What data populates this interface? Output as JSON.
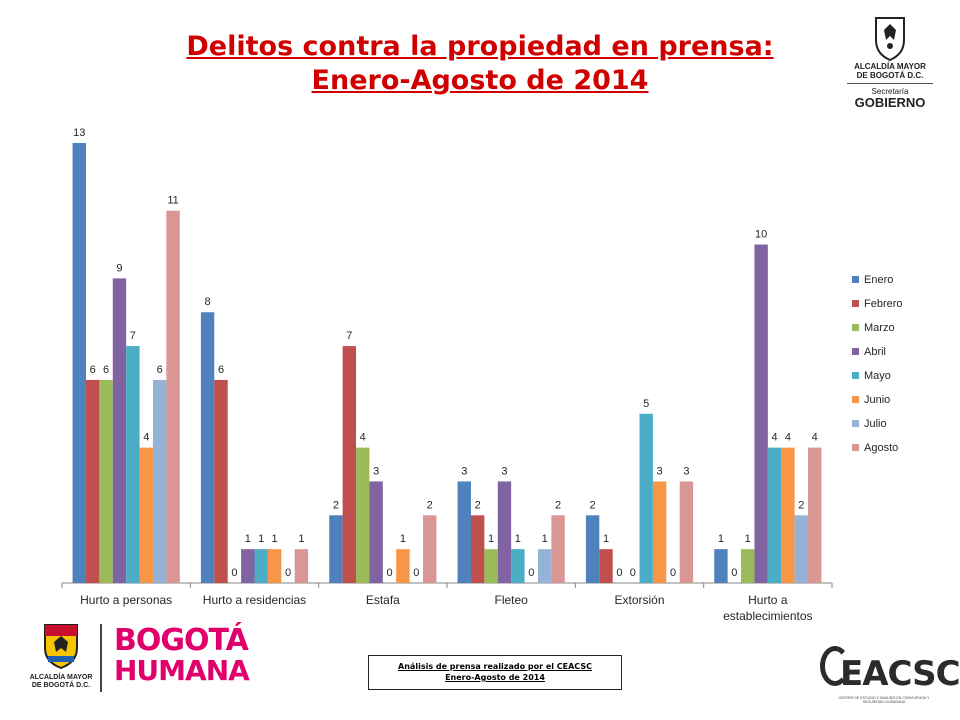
{
  "title_line1": "Delitos contra la propiedad en prensa:",
  "title_line2": "Enero-Agosto de 2014",
  "logo_top": {
    "line1": "ALCALDÍA MAYOR",
    "line2": "DE BOGOTÁ D.C.",
    "line3": "Secretaría",
    "line4": "GOBIERNO",
    "icon": "shield-icon"
  },
  "chart_data": {
    "type": "bar",
    "categories": [
      "Hurto a personas",
      "Hurto a residencias",
      "Estafa",
      "Fleteo",
      "Extorsión",
      "Hurto a establecimientos"
    ],
    "category_label_lines": [
      [
        "Hurto a personas"
      ],
      [
        "Hurto a residencias"
      ],
      [
        "Estafa"
      ],
      [
        "Fleteo"
      ],
      [
        "Extorsión"
      ],
      [
        "Hurto a",
        "establecimientos"
      ]
    ],
    "series": [
      {
        "name": "Enero",
        "color": "#4f81bd",
        "values": [
          13,
          8,
          2,
          3,
          2,
          1
        ]
      },
      {
        "name": "Febrero",
        "color": "#c0504d",
        "values": [
          6,
          6,
          7,
          2,
          1,
          0
        ]
      },
      {
        "name": "Marzo",
        "color": "#9bbb59",
        "values": [
          6,
          0,
          4,
          1,
          0,
          1
        ]
      },
      {
        "name": "Abril",
        "color": "#8064a2",
        "values": [
          9,
          1,
          3,
          3,
          0,
          10
        ]
      },
      {
        "name": "Mayo",
        "color": "#4bacc6",
        "values": [
          7,
          1,
          0,
          1,
          5,
          4
        ]
      },
      {
        "name": "Junio",
        "color": "#f79646",
        "values": [
          4,
          1,
          1,
          0,
          3,
          4
        ]
      },
      {
        "name": "Julio",
        "color": "#95b3d7",
        "values": [
          6,
          0,
          0,
          1,
          0,
          2
        ]
      },
      {
        "name": "Agosto",
        "color": "#d99694",
        "values": [
          11,
          1,
          2,
          2,
          3,
          4
        ]
      }
    ],
    "ylim": [
      0,
      13
    ],
    "data_labels": true,
    "grid": false,
    "legend": "right"
  },
  "bottom_left": {
    "shield_icon": "shield-icon",
    "alcaldia_line1": "ALCALDÍA MAYOR",
    "alcaldia_line2": "DE BOGOTÁ D.C.",
    "bogota": "BOGOTÁ",
    "humana": "HUMANA"
  },
  "footer": {
    "line1": "Análisis de prensa realizado por el CEACSC",
    "line2": "Enero-Agosto de 2014"
  },
  "ceacsc": {
    "name": "EACSC",
    "subtitle": "CENTRO DE ESTUDIO Y ANÁLISIS EN CONVIVENCIA Y SEGURIDAD CIUDADANA"
  }
}
